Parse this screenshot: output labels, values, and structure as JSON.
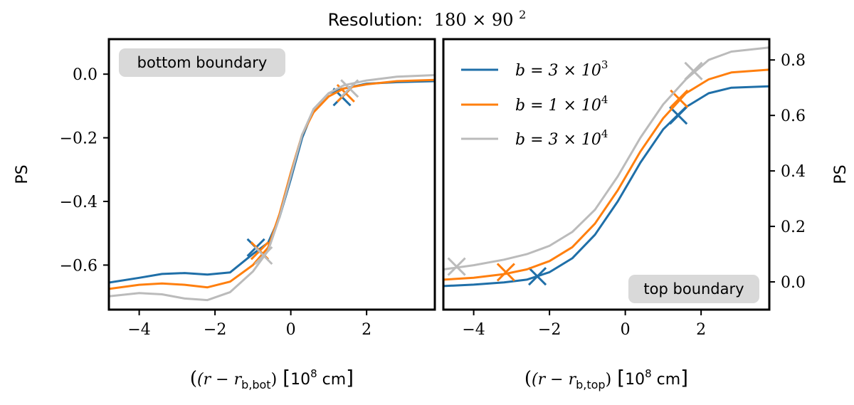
{
  "figure": {
    "title_prefix": "Resolution:",
    "title_math": "180 × 90",
    "title_exp": "2"
  },
  "legend": [
    {
      "label": "b = 3 × 10",
      "exp": "3",
      "color": "#1f6fa8"
    },
    {
      "label": "b = 1 × 10",
      "exp": "4",
      "color": "#ff7f0e"
    },
    {
      "label": "b = 3 × 10",
      "exp": "4",
      "color": "#bbbbbb"
    }
  ],
  "chart_data": [
    {
      "type": "line",
      "panel": "left",
      "annotation": "bottom boundary",
      "ylabel": "PS",
      "xlabel_parts": {
        "open": "(r − r",
        "sub": "b,bot",
        "close": ")",
        "unit_pre": "10",
        "unit_exp": "8",
        "unit_post": " cm"
      },
      "xlim": [
        -4.8,
        3.8
      ],
      "ylim": [
        -0.74,
        0.11
      ],
      "xticks": [
        -4,
        -2,
        0,
        2
      ],
      "xtick_labels": [
        "−4",
        "−2",
        "0",
        "2"
      ],
      "yticks": [
        0.0,
        -0.2,
        -0.4,
        -0.6
      ],
      "ytick_labels": [
        "0.0",
        "−0.2",
        "−0.4",
        "−0.6"
      ],
      "series": [
        {
          "name": "b = 3 × 10^3",
          "color": "#1f6fa8",
          "x": [
            -4.8,
            -4.0,
            -3.4,
            -2.8,
            -2.2,
            -1.6,
            -1.0,
            -0.6,
            -0.3,
            0.0,
            0.3,
            0.6,
            1.0,
            1.4,
            2.0,
            2.8,
            3.8
          ],
          "y": [
            -0.655,
            -0.64,
            -0.628,
            -0.625,
            -0.63,
            -0.623,
            -0.565,
            -0.53,
            -0.45,
            -0.33,
            -0.2,
            -0.11,
            -0.06,
            -0.045,
            -0.03,
            -0.025,
            -0.022
          ],
          "markers": [
            {
              "x": -0.92,
              "y": -0.545
            },
            {
              "x": 1.35,
              "y": -0.072
            }
          ]
        },
        {
          "name": "b = 1 × 10^4",
          "color": "#ff7f0e",
          "x": [
            -4.8,
            -4.0,
            -3.4,
            -2.8,
            -2.2,
            -1.6,
            -1.0,
            -0.6,
            -0.3,
            0.0,
            0.3,
            0.6,
            1.0,
            1.4,
            2.0,
            2.8,
            3.8
          ],
          "y": [
            -0.675,
            -0.662,
            -0.658,
            -0.662,
            -0.67,
            -0.652,
            -0.6,
            -0.545,
            -0.44,
            -0.31,
            -0.19,
            -0.12,
            -0.07,
            -0.045,
            -0.032,
            -0.022,
            -0.018
          ],
          "markers": [
            {
              "x": -0.82,
              "y": -0.555
            },
            {
              "x": 1.45,
              "y": -0.06
            }
          ]
        },
        {
          "name": "b = 3 × 10^4",
          "color": "#bbbbbb",
          "x": [
            -4.8,
            -4.0,
            -3.4,
            -2.8,
            -2.2,
            -1.6,
            -1.0,
            -0.6,
            -0.3,
            0.0,
            0.3,
            0.6,
            1.0,
            1.4,
            2.0,
            2.8,
            3.8
          ],
          "y": [
            -0.698,
            -0.688,
            -0.692,
            -0.705,
            -0.71,
            -0.685,
            -0.62,
            -0.555,
            -0.45,
            -0.32,
            -0.19,
            -0.11,
            -0.06,
            -0.035,
            -0.02,
            -0.008,
            -0.003
          ],
          "markers": [
            {
              "x": -0.72,
              "y": -0.57
            },
            {
              "x": 1.55,
              "y": -0.045
            }
          ]
        }
      ]
    },
    {
      "type": "line",
      "panel": "right",
      "annotation": "top boundary",
      "ylabel": "PS",
      "xlabel_parts": {
        "open": "(r − r",
        "sub": "b,top",
        "close": ")",
        "unit_pre": "10",
        "unit_exp": "8",
        "unit_post": " cm"
      },
      "xlim": [
        -4.8,
        3.8
      ],
      "ylim": [
        -0.1,
        0.875
      ],
      "xticks": [
        -4,
        -2,
        0,
        2
      ],
      "xtick_labels": [
        "−4",
        "−2",
        "0",
        "2"
      ],
      "yticks": [
        0.0,
        0.2,
        0.4,
        0.6,
        0.8
      ],
      "ytick_labels": [
        "0.0",
        "0.2",
        "0.4",
        "0.6",
        "0.8"
      ],
      "series": [
        {
          "name": "b = 3 × 10^3",
          "color": "#1f6fa8",
          "x": [
            -4.8,
            -4.0,
            -3.2,
            -2.6,
            -2.0,
            -1.4,
            -0.8,
            -0.2,
            0.4,
            1.0,
            1.6,
            2.2,
            2.8,
            3.8
          ],
          "y": [
            -0.015,
            -0.01,
            -0.002,
            0.008,
            0.035,
            0.085,
            0.17,
            0.29,
            0.43,
            0.55,
            0.63,
            0.68,
            0.7,
            0.705
          ],
          "markers": [
            {
              "x": -2.32,
              "y": 0.02
            },
            {
              "x": 1.4,
              "y": 0.6
            }
          ]
        },
        {
          "name": "b = 1 × 10^4",
          "color": "#ff7f0e",
          "x": [
            -4.8,
            -4.0,
            -3.2,
            -2.6,
            -2.0,
            -1.4,
            -0.8,
            -0.2,
            0.4,
            1.0,
            1.6,
            2.2,
            2.8,
            3.8
          ],
          "y": [
            0.008,
            0.015,
            0.028,
            0.045,
            0.075,
            0.125,
            0.21,
            0.33,
            0.47,
            0.59,
            0.68,
            0.73,
            0.755,
            0.765
          ],
          "markers": [
            {
              "x": -3.15,
              "y": 0.035
            },
            {
              "x": 1.42,
              "y": 0.66
            }
          ]
        },
        {
          "name": "b = 3 × 10^4",
          "color": "#bbbbbb",
          "x": [
            -4.8,
            -4.0,
            -3.2,
            -2.6,
            -2.0,
            -1.4,
            -0.8,
            -0.2,
            0.4,
            1.0,
            1.6,
            2.2,
            2.8,
            3.8
          ],
          "y": [
            0.045,
            0.06,
            0.08,
            0.1,
            0.13,
            0.18,
            0.26,
            0.38,
            0.52,
            0.64,
            0.73,
            0.8,
            0.83,
            0.845
          ],
          "markers": [
            {
              "x": -4.45,
              "y": 0.055
            },
            {
              "x": 1.8,
              "y": 0.76
            }
          ]
        }
      ]
    }
  ]
}
